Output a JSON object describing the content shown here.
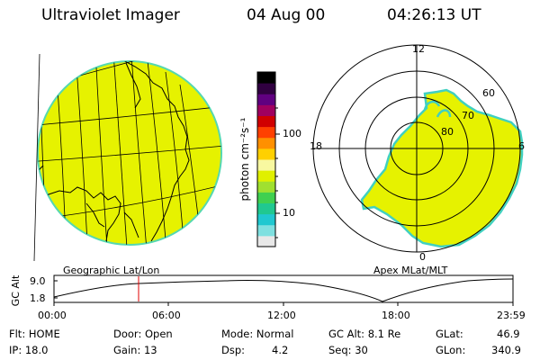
{
  "header": {
    "app_title": "Ultraviolet Imager",
    "date": "04 Aug 00",
    "time": "04:26:13 UT"
  },
  "colorbar": {
    "unit_label": "photon cm⁻²s⁻¹",
    "tick_labels": [
      "100",
      "10"
    ],
    "colors": [
      "#e8e8e8",
      "#7fe0e0",
      "#20c8d0",
      "#20c890",
      "#40d050",
      "#a0e030",
      "#e0f000",
      "#f8f8a0",
      "#ffd000",
      "#ff9000",
      "#ff4000",
      "#d00000",
      "#a00060",
      "#600080",
      "#300040",
      "#000000"
    ]
  },
  "geo_panel": {
    "caption": "Geographic Lat/Lon",
    "fill_color": "#e6f200"
  },
  "polar_panel": {
    "caption": "Apex MLat/MLT",
    "hour_labels": {
      "top": "12",
      "left": "18",
      "right": "6",
      "bottom": "0"
    },
    "lat_labels": [
      "60",
      "70",
      "80"
    ]
  },
  "timeline": {
    "y_label": "GC Alt",
    "y_ticks": [
      "9.0",
      "1.8"
    ],
    "x_ticks": [
      "00:00",
      "06:00",
      "12:00",
      "18:00",
      "23:59"
    ],
    "current_marker_color": "#e00000"
  },
  "status": {
    "flt": "Flt: HOME",
    "ip": "IP: 18.0",
    "door": "Door: Open",
    "gain": "Gain: 13",
    "mode": "Mode: Normal",
    "dsp_label": "Dsp:",
    "dsp_value": "4.2",
    "gc_alt": "GC Alt: 8.1 Re",
    "seq": "Seq: 30",
    "glat_label": "GLat:",
    "glat_value": "46.9",
    "glon_label": "GLon:",
    "glon_value": "340.9"
  }
}
